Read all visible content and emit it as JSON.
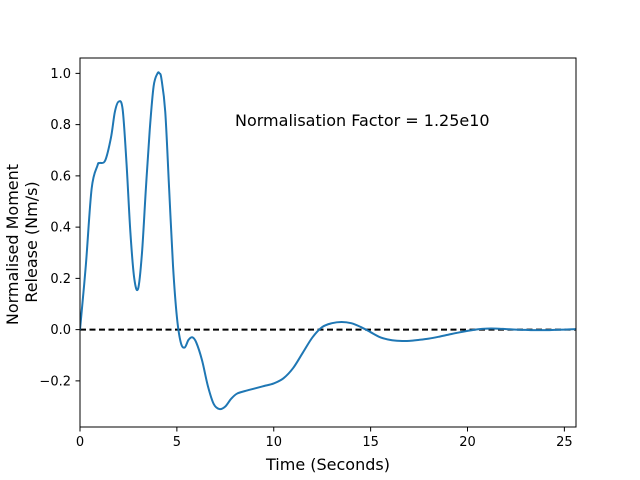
{
  "chart_data": {
    "type": "line",
    "title": "",
    "xlabel": "Time (Seconds)",
    "ylabel_lines": [
      "Normalised Moment",
      "Release (Nm/s)"
    ],
    "annotation": "Normalisation Factor = 1.25e10",
    "xlim": [
      0,
      25.6
    ],
    "ylim": [
      -0.38,
      1.06
    ],
    "grid": false,
    "legend": "none",
    "x_ticks": [
      0,
      5,
      10,
      15,
      20,
      25
    ],
    "x_tick_labels": [
      "0",
      "5",
      "10",
      "15",
      "20",
      "25"
    ],
    "y_ticks": [
      -0.2,
      0.0,
      0.2,
      0.4,
      0.6,
      0.8,
      1.0
    ],
    "y_tick_labels": [
      "−0.2",
      "0.0",
      "0.2",
      "0.4",
      "0.6",
      "0.8",
      "1.0"
    ],
    "reference_line": {
      "y": 0.0,
      "style": "dashed",
      "color": "#000000"
    },
    "series": [
      {
        "color": "#1f77b4",
        "x": [
          0,
          0.3,
          0.6,
          0.9,
          1.0,
          1.3,
          1.6,
          1.8,
          2.0,
          2.2,
          2.4,
          2.6,
          2.8,
          3.0,
          3.2,
          3.4,
          3.6,
          3.8,
          4.0,
          4.1,
          4.2,
          4.4,
          4.6,
          4.8,
          5.0,
          5.2,
          5.4,
          5.6,
          5.8,
          6.0,
          6.3,
          6.6,
          6.9,
          7.2,
          7.5,
          7.8,
          8.1,
          8.5,
          9.0,
          9.5,
          10.0,
          10.5,
          11.0,
          11.5,
          12.0,
          12.5,
          13.0,
          13.5,
          14.0,
          14.5,
          15.0,
          15.5,
          16.0,
          16.5,
          17.0,
          17.5,
          18.0,
          18.5,
          19.0,
          19.5,
          20.0,
          20.5,
          21.0,
          21.5,
          22.0,
          22.5,
          23.0,
          23.5,
          24.0,
          24.5,
          25.0,
          25.6
        ],
        "y": [
          0.0,
          0.25,
          0.55,
          0.64,
          0.65,
          0.66,
          0.75,
          0.85,
          0.89,
          0.86,
          0.65,
          0.38,
          0.2,
          0.16,
          0.3,
          0.55,
          0.78,
          0.95,
          1.0,
          1.0,
          0.98,
          0.85,
          0.55,
          0.25,
          0.05,
          -0.05,
          -0.07,
          -0.04,
          -0.03,
          -0.05,
          -0.12,
          -0.22,
          -0.29,
          -0.31,
          -0.3,
          -0.27,
          -0.25,
          -0.24,
          -0.23,
          -0.22,
          -0.21,
          -0.19,
          -0.15,
          -0.09,
          -0.03,
          0.01,
          0.025,
          0.03,
          0.025,
          0.01,
          -0.01,
          -0.03,
          -0.04,
          -0.044,
          -0.044,
          -0.04,
          -0.035,
          -0.028,
          -0.02,
          -0.012,
          -0.005,
          0.001,
          0.004,
          0.004,
          0.002,
          0.0,
          -0.001,
          -0.002,
          -0.002,
          -0.001,
          0.0,
          0.002
        ]
      }
    ]
  }
}
